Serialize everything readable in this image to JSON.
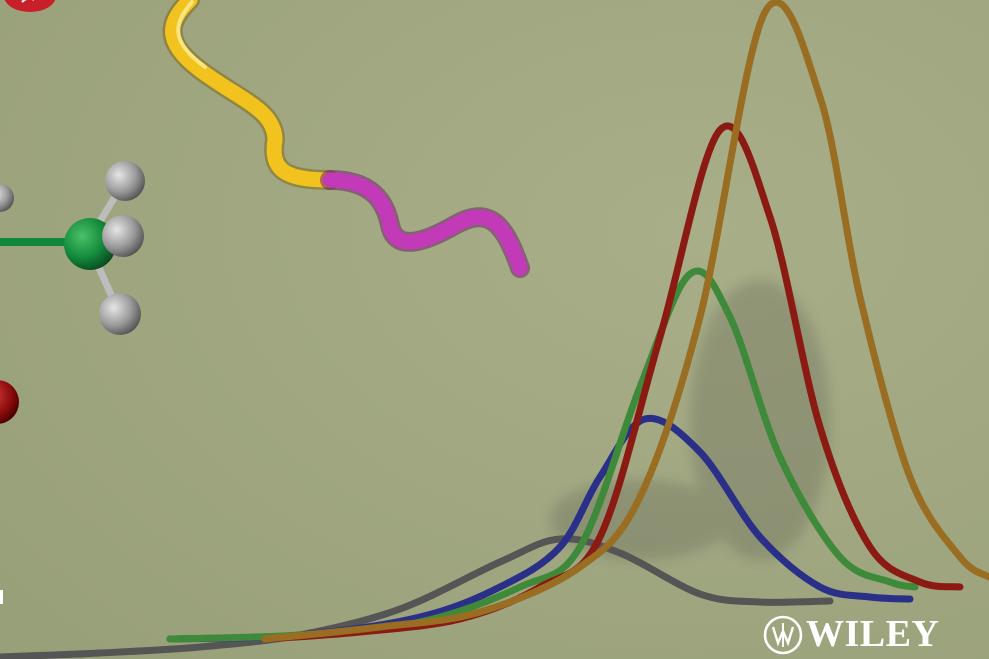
{
  "background_color": "#a3aa84",
  "brand": {
    "wordmark": "WILEY",
    "color": "#ffffff"
  },
  "chart_data": {
    "type": "line",
    "grid": false,
    "series": [
      {
        "color": "#555555",
        "x": [
          0,
          100,
          200,
          300,
          400,
          500,
          560,
          620,
          700,
          760,
          830
        ],
        "y": [
          0,
          4,
          10,
          22,
          48,
          95,
          118,
          104,
          63,
          55,
          56
        ]
      },
      {
        "color": "#2a2f88",
        "x": [
          170,
          300,
          420,
          500,
          560,
          600,
          645,
          700,
          760,
          820,
          870,
          910
        ],
        "y": [
          18,
          22,
          40,
          70,
          110,
          180,
          238,
          205,
          120,
          70,
          60,
          58
        ]
      },
      {
        "color": "#3f8a3a",
        "x": [
          170,
          300,
          420,
          520,
          580,
          640,
          690,
          730,
          780,
          840,
          890,
          915
        ],
        "y": [
          18,
          22,
          35,
          70,
          110,
          270,
          383,
          340,
          200,
          100,
          75,
          70
        ]
      },
      {
        "color": "#8a1a12",
        "x": [
          265,
          360,
          460,
          540,
          600,
          660,
          720,
          770,
          820,
          870,
          920,
          960
        ],
        "y": [
          18,
          25,
          38,
          70,
          120,
          320,
          527,
          440,
          230,
          110,
          75,
          70
        ]
      },
      {
        "color": "#9a6e22",
        "x": [
          265,
          380,
          480,
          580,
          640,
          700,
          765,
          820,
          860,
          910,
          960,
          989
        ],
        "y": [
          18,
          30,
          45,
          90,
          160,
          340,
          645,
          560,
          360,
          180,
          100,
          80
        ]
      }
    ]
  }
}
